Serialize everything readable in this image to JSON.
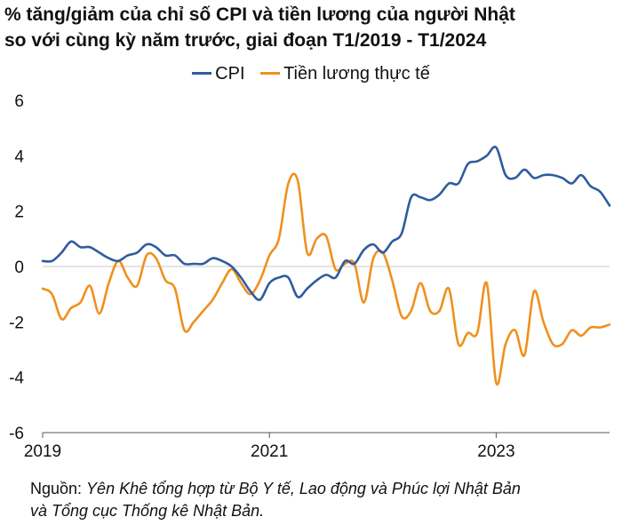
{
  "title_lines": [
    "% tăng/giảm của chỉ số CPI và tiền lương của người Nhật",
    "so với cùng kỳ năm trước, giai đoạn T1/2019 - T1/2024"
  ],
  "source": {
    "prefix": "Nguồn: ",
    "line1_italic": "Yên Khê tổng hợp từ Bộ Y tế, Lao động và Phúc lợi Nhật Bản",
    "line2_italic": "và Tổng cục Thống kê Nhật Bản."
  },
  "chart_data": {
    "type": "line",
    "title": "% tăng/giảm của chỉ số CPI và tiền lương của người Nhật so với cùng kỳ năm trước, giai đoạn T1/2019 - T1/2024",
    "xlabel": "",
    "ylabel": "",
    "x_start": "2019-01",
    "x_end": "2024-01",
    "xticks": [
      "2019",
      "2021",
      "2023"
    ],
    "yticks": [
      6,
      4,
      2,
      0,
      -2,
      -4,
      -6
    ],
    "ylim": [
      -6,
      6
    ],
    "grid": "horizontal-zero-line",
    "legend_position": "top-center",
    "series": [
      {
        "name": "CPI",
        "color": "#2E5C9E",
        "values": [
          0.2,
          0.2,
          0.5,
          0.9,
          0.7,
          0.7,
          0.5,
          0.3,
          0.2,
          0.4,
          0.5,
          0.8,
          0.7,
          0.4,
          0.4,
          0.1,
          0.1,
          0.1,
          0.3,
          0.2,
          0.0,
          -0.4,
          -0.9,
          -1.2,
          -0.6,
          -0.4,
          -0.4,
          -1.1,
          -0.8,
          -0.5,
          -0.3,
          -0.4,
          0.2,
          0.1,
          0.6,
          0.8,
          0.5,
          0.9,
          1.2,
          2.5,
          2.5,
          2.4,
          2.6,
          3.0,
          3.0,
          3.7,
          3.8,
          4.0,
          4.3,
          3.3,
          3.2,
          3.5,
          3.2,
          3.3,
          3.3,
          3.2,
          3.0,
          3.3,
          2.9,
          2.7,
          2.2
        ]
      },
      {
        "name": "Tiền lương thực tế",
        "color": "#F0901E",
        "values": [
          -0.8,
          -1.0,
          -1.9,
          -1.5,
          -1.3,
          -0.7,
          -1.7,
          -0.6,
          0.2,
          -0.4,
          -0.7,
          0.4,
          0.3,
          -0.5,
          -0.8,
          -2.3,
          -2.0,
          -1.6,
          -1.2,
          -0.6,
          -0.1,
          -0.6,
          -1.0,
          -0.5,
          0.4,
          1.0,
          3.0,
          3.1,
          0.5,
          1.0,
          1.1,
          -0.1,
          0.1,
          0.1,
          -1.3,
          0.3,
          0.5,
          -0.5,
          -1.8,
          -1.6,
          -0.6,
          -1.6,
          -1.6,
          -0.8,
          -2.8,
          -2.4,
          -2.4,
          -0.6,
          -4.2,
          -2.8,
          -2.3,
          -3.2,
          -0.9,
          -2.0,
          -2.8,
          -2.8,
          -2.3,
          -2.5,
          -2.2,
          -2.2,
          -2.1
        ]
      }
    ]
  }
}
